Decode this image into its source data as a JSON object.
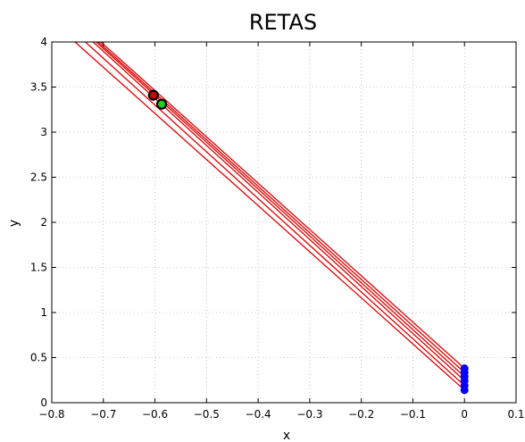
{
  "chart_data": {
    "type": "line",
    "title": "RETAS",
    "xlabel": "x",
    "ylabel": "y",
    "xlim": [
      -0.8,
      0.1
    ],
    "ylim": [
      0,
      4
    ],
    "x_ticks": [
      -0.8,
      -0.7,
      -0.6,
      -0.5,
      -0.4,
      -0.3,
      -0.2,
      -0.1,
      0,
      0.1
    ],
    "x_tick_labels": [
      "−0.8",
      "−0.7",
      "−0.6",
      "−0.5",
      "−0.4",
      "−0.3",
      "−0.2",
      "−0.1",
      "0",
      "0.1"
    ],
    "y_ticks": [
      0,
      0.5,
      1,
      1.5,
      2,
      2.5,
      3,
      3.5,
      4
    ],
    "y_tick_labels": [
      "0",
      "0.5",
      "1",
      "1.5",
      "2",
      "2.5",
      "3",
      "3.5",
      "4"
    ],
    "grid": true,
    "line_color": "#e00000",
    "series": [
      {
        "x": [
          -0.755,
          0.0
        ],
        "y": [
          4.0,
          0.14
        ]
      },
      {
        "x": [
          -0.735,
          0.0
        ],
        "y": [
          4.0,
          0.19
        ]
      },
      {
        "x": [
          -0.72,
          0.0
        ],
        "y": [
          4.0,
          0.245
        ]
      },
      {
        "x": [
          -0.714,
          0.0
        ],
        "y": [
          4.0,
          0.29
        ]
      },
      {
        "x": [
          -0.71,
          0.0
        ],
        "y": [
          4.0,
          0.335
        ]
      },
      {
        "x": [
          -0.705,
          0.0
        ],
        "y": [
          4.0,
          0.38
        ]
      }
    ],
    "intercept_points": {
      "color": "#0000ff",
      "x": [
        0,
        0,
        0,
        0,
        0,
        0
      ],
      "y": [
        0.14,
        0.19,
        0.245,
        0.29,
        0.335,
        0.38
      ]
    },
    "marked_points": [
      {
        "x": -0.603,
        "y": 3.41,
        "fill": "#cc0000",
        "edge": "#000000"
      },
      {
        "x": -0.587,
        "y": 3.31,
        "fill": "#22cc22",
        "edge": "#000000"
      }
    ]
  }
}
